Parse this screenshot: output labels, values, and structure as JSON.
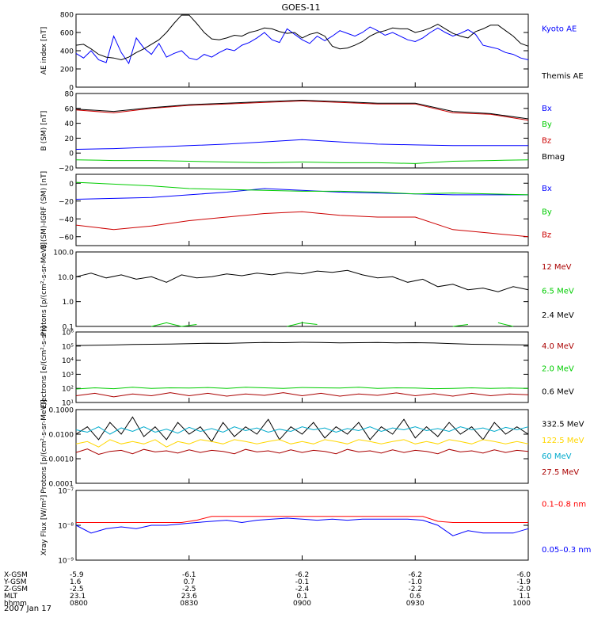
{
  "title": "GOES-11",
  "date_label": "2007 Jan 17",
  "x_ticks": [
    "0800",
    "0830",
    "0900",
    "0930",
    "1000"
  ],
  "ephemeris": {
    "labels": [
      "X-GSM",
      "Y-GSM",
      "Z-GSM",
      "MLT",
      "hhmm"
    ],
    "rows": [
      [
        "-5.9",
        "-6.1",
        "-6.2",
        "-6.2",
        "-6.0"
      ],
      [
        "1.6",
        "0.7",
        "-0.1",
        "-1.0",
        "-1.9"
      ],
      [
        "-2.5",
        "-2.5",
        "-2.4",
        "-2.2",
        "-2.0"
      ],
      [
        "23.1",
        "23.6",
        "0.1",
        "0.6",
        "1.1"
      ]
    ]
  },
  "colors": {
    "black": "#000000",
    "blue": "#0000ff",
    "green": "#00cc00",
    "red": "#cc0000",
    "darkred": "#aa0000",
    "yellow": "#ffd700",
    "cyan": "#00aacc",
    "orange_red": "#ff0000"
  },
  "chart_data": [
    {
      "type": "line",
      "ylabel": "AE index [nT]",
      "scale": "linear",
      "ylim": [
        0,
        800
      ],
      "yticks": [
        0,
        200,
        400,
        600,
        800
      ],
      "ytick_labels": [
        "0",
        "200",
        "400",
        "600",
        "800"
      ],
      "x": [
        0,
        2,
        4,
        6,
        8,
        10,
        12,
        14,
        16,
        18,
        20,
        22,
        24,
        26,
        28,
        30,
        32,
        34,
        36,
        38,
        40,
        42,
        44,
        46,
        48,
        50,
        52,
        54,
        56,
        58,
        60,
        62,
        64,
        66,
        68,
        70,
        72,
        74,
        76,
        78,
        80,
        82,
        84,
        86,
        88,
        90,
        92,
        94,
        96,
        98,
        100,
        102,
        104,
        106,
        108,
        110,
        112,
        114,
        116,
        118,
        120
      ],
      "series": [
        {
          "name": "Kyoto AE",
          "color": "#0000ff",
          "values": [
            370,
            320,
            400,
            300,
            270,
            560,
            380,
            260,
            540,
            430,
            360,
            480,
            330,
            370,
            400,
            320,
            300,
            360,
            330,
            380,
            420,
            400,
            460,
            490,
            540,
            600,
            520,
            490,
            640,
            580,
            520,
            480,
            560,
            510,
            560,
            620,
            590,
            560,
            600,
            660,
            620,
            570,
            600,
            560,
            520,
            500,
            540,
            600,
            650,
            600,
            560,
            590,
            630,
            580,
            460,
            440,
            420,
            380,
            360,
            320,
            300
          ]
        },
        {
          "name": "Themis AE",
          "color": "#000000",
          "values": [
            460,
            470,
            420,
            360,
            330,
            320,
            300,
            330,
            380,
            420,
            470,
            520,
            600,
            700,
            790,
            790,
            700,
            600,
            530,
            520,
            540,
            570,
            560,
            600,
            620,
            650,
            640,
            610,
            590,
            600,
            540,
            580,
            600,
            560,
            450,
            420,
            430,
            460,
            500,
            560,
            600,
            620,
            650,
            640,
            640,
            600,
            620,
            650,
            690,
            640,
            590,
            560,
            540,
            610,
            640,
            680,
            680,
            620,
            560,
            480,
            450
          ]
        }
      ],
      "legend": [
        "Kyoto AE",
        "Themis AE"
      ]
    },
    {
      "type": "line",
      "ylabel": "B (SM) [nT]",
      "scale": "linear",
      "ylim": [
        -20,
        80
      ],
      "yticks": [
        -20,
        0,
        20,
        40,
        60,
        80
      ],
      "ytick_labels": [
        "−20",
        "0",
        "20",
        "40",
        "60",
        "80"
      ],
      "x": [
        0,
        10,
        20,
        30,
        40,
        50,
        60,
        70,
        80,
        90,
        100,
        110,
        120
      ],
      "series": [
        {
          "name": "Bx",
          "color": "#0000ff",
          "values": [
            5,
            6,
            8,
            10,
            12,
            15,
            18,
            15,
            12,
            11,
            10,
            10,
            10
          ]
        },
        {
          "name": "By",
          "color": "#00cc00",
          "values": [
            -9,
            -10,
            -10,
            -11,
            -12,
            -13,
            -12,
            -13,
            -13,
            -14,
            -11,
            -10,
            -9
          ]
        },
        {
          "name": "Bz",
          "color": "#cc0000",
          "values": [
            58,
            54,
            60,
            64,
            66,
            68,
            70,
            68,
            66,
            66,
            54,
            52,
            44
          ]
        },
        {
          "name": "Bmag",
          "color": "#000000",
          "values": [
            59,
            56,
            61,
            65,
            67,
            69,
            71,
            69,
            67,
            67,
            56,
            53,
            46
          ]
        }
      ],
      "legend": [
        "Bx",
        "By",
        "Bz",
        "Bmag"
      ]
    },
    {
      "type": "line",
      "ylabel": "B (SM)-IGRF (SM) [nT]",
      "scale": "linear",
      "ylim": [
        -70,
        10
      ],
      "yticks": [
        -60,
        -40,
        -20,
        0
      ],
      "ytick_labels": [
        "−60",
        "−40",
        "−20",
        "0"
      ],
      "x": [
        0,
        10,
        20,
        30,
        40,
        50,
        60,
        70,
        80,
        90,
        100,
        110,
        120
      ],
      "series": [
        {
          "name": "Bx",
          "color": "#0000ff",
          "values": [
            -18,
            -17,
            -16,
            -13,
            -10,
            -6,
            -8,
            -10,
            -11,
            -12,
            -13,
            -13,
            -13
          ]
        },
        {
          "name": "By",
          "color": "#00cc00",
          "values": [
            1,
            -1,
            -3,
            -6,
            -7,
            -8,
            -9,
            -9,
            -10,
            -12,
            -11,
            -12,
            -13
          ]
        },
        {
          "name": "Bz",
          "color": "#cc0000",
          "values": [
            -47,
            -52,
            -48,
            -42,
            -38,
            -34,
            -32,
            -36,
            -38,
            -38,
            -52,
            -56,
            -60
          ]
        }
      ],
      "legend": [
        "Bx",
        "By",
        "Bz"
      ]
    },
    {
      "type": "line",
      "ylabel": "Protons [p/(cm²-s-sr-MeV)]",
      "scale": "log",
      "ylim": [
        0.1,
        100
      ],
      "yticks": [
        0.1,
        1,
        10,
        100
      ],
      "ytick_labels": [
        "0.1",
        "1.0",
        "10.0",
        "100.0"
      ],
      "x": [
        0,
        4,
        8,
        12,
        16,
        20,
        24,
        28,
        32,
        36,
        40,
        44,
        48,
        52,
        56,
        60,
        64,
        68,
        72,
        76,
        80,
        84,
        88,
        92,
        96,
        100,
        104,
        108,
        112,
        116,
        120
      ],
      "series": [
        {
          "name": "12 MeV",
          "color": "#aa0000",
          "values": [
            null,
            null,
            null,
            null,
            null,
            null,
            null,
            null,
            null,
            null,
            null,
            null,
            null,
            null,
            null,
            null,
            null,
            null,
            null,
            null,
            null,
            null,
            null,
            null,
            null,
            null,
            null,
            null,
            null,
            null,
            null
          ]
        },
        {
          "name": "6.5 MeV",
          "color": "#00cc00",
          "values": [
            0.1,
            null,
            null,
            null,
            null,
            0.1,
            0.14,
            0.1,
            0.12,
            null,
            null,
            null,
            null,
            null,
            0.1,
            0.14,
            0.12,
            null,
            null,
            null,
            null,
            0.1,
            null,
            0.14,
            null,
            0.1,
            0.12,
            null,
            0.14,
            0.1,
            null
          ]
        },
        {
          "name": "2.4 MeV",
          "color": "#000000",
          "values": [
            10,
            14,
            9,
            12,
            8,
            10,
            6,
            12,
            9,
            10,
            13,
            11,
            14,
            12,
            15,
            13,
            17,
            15,
            18,
            12,
            9,
            10,
            6,
            8,
            4,
            5,
            3,
            3.5,
            2.5,
            4,
            3
          ]
        }
      ],
      "legend": [
        "12 MeV",
        "6.5 MeV",
        "2.4 MeV"
      ]
    },
    {
      "type": "line",
      "ylabel": "Electrons [e/(cm²-s-sr)]",
      "scale": "log",
      "ylim": [
        10,
        1000000
      ],
      "yticks": [
        10,
        100,
        1000,
        10000,
        100000,
        1000000
      ],
      "ytick_labels": [
        "10¹",
        "10²",
        "10³",
        "10⁴",
        "10⁵",
        "10⁶"
      ],
      "x": [
        0,
        5,
        10,
        15,
        20,
        25,
        30,
        35,
        40,
        45,
        50,
        55,
        60,
        65,
        70,
        75,
        80,
        85,
        90,
        95,
        100,
        105,
        110,
        115,
        120
      ],
      "series": [
        {
          "name": "4.0 MeV",
          "color": "#aa0000",
          "values": [
            30,
            45,
            25,
            40,
            30,
            50,
            30,
            45,
            28,
            40,
            32,
            50,
            30,
            45,
            28,
            40,
            32,
            48,
            30,
            42,
            28,
            45,
            30,
            40,
            35
          ]
        },
        {
          "name": "2.0 MeV",
          "color": "#00cc00",
          "values": [
            90,
            110,
            95,
            120,
            100,
            110,
            105,
            115,
            100,
            120,
            110,
            100,
            115,
            110,
            105,
            120,
            100,
            110,
            105,
            95,
            100,
            110,
            100,
            105,
            100
          ]
        },
        {
          "name": "0.6 MeV",
          "color": "#000000",
          "values": [
            110000,
            115000,
            120000,
            130000,
            135000,
            140000,
            150000,
            160000,
            155000,
            170000,
            180000,
            175000,
            185000,
            180000,
            170000,
            175000,
            180000,
            170000,
            175000,
            165000,
            150000,
            135000,
            130000,
            125000,
            120000
          ]
        }
      ],
      "legend": [
        "4.0 MeV",
        "2.0 MeV",
        "0.6 MeV"
      ]
    },
    {
      "type": "line",
      "ylabel": "Protons [p/(cm²-s-sr-MeV)]",
      "scale": "log",
      "ylim": [
        0.0001,
        0.1
      ],
      "yticks": [
        0.0001,
        0.001,
        0.01,
        0.1
      ],
      "ytick_labels": [
        "0.0001",
        "0.0010",
        "0.0100",
        "0.1000"
      ],
      "x": [
        0,
        3,
        6,
        9,
        12,
        15,
        18,
        21,
        24,
        27,
        30,
        33,
        36,
        39,
        42,
        45,
        48,
        51,
        54,
        57,
        60,
        63,
        66,
        69,
        72,
        75,
        78,
        81,
        84,
        87,
        90,
        93,
        96,
        99,
        102,
        105,
        108,
        111,
        114,
        117,
        120
      ],
      "series": [
        {
          "name": "332.5 MeV",
          "color": "#000000",
          "values": [
            0.01,
            0.02,
            0.006,
            0.03,
            0.01,
            0.05,
            0.008,
            0.02,
            0.006,
            0.03,
            0.01,
            0.02,
            0.005,
            0.03,
            0.008,
            0.02,
            0.01,
            0.04,
            0.006,
            0.02,
            0.01,
            0.03,
            0.007,
            0.02,
            0.01,
            0.03,
            0.006,
            0.02,
            0.01,
            0.04,
            0.007,
            0.02,
            0.008,
            0.03,
            0.01,
            0.02,
            0.006,
            0.03,
            0.01,
            0.02,
            0.01
          ]
        },
        {
          "name": "122.5 MeV",
          "color": "#ffd700",
          "values": [
            0.004,
            0.005,
            0.003,
            0.006,
            0.004,
            0.005,
            0.004,
            0.006,
            0.003,
            0.005,
            0.004,
            0.006,
            0.005,
            0.004,
            0.006,
            0.005,
            0.004,
            0.005,
            0.006,
            0.004,
            0.005,
            0.004,
            0.006,
            0.005,
            0.004,
            0.006,
            0.005,
            0.004,
            0.005,
            0.006,
            0.004,
            0.005,
            0.004,
            0.006,
            0.005,
            0.004,
            0.006,
            0.005,
            0.004,
            0.005,
            0.004
          ]
        },
        {
          "name": "60 MeV",
          "color": "#00aacc",
          "values": [
            0.015,
            0.012,
            0.02,
            0.01,
            0.018,
            0.013,
            0.02,
            0.012,
            0.016,
            0.011,
            0.019,
            0.013,
            0.017,
            0.012,
            0.02,
            0.014,
            0.018,
            0.012,
            0.016,
            0.013,
            0.02,
            0.015,
            0.018,
            0.012,
            0.017,
            0.014,
            0.02,
            0.013,
            0.018,
            0.015,
            0.02,
            0.014,
            0.017,
            0.013,
            0.02,
            0.015,
            0.018,
            0.013,
            0.019,
            0.015,
            0.02
          ]
        },
        {
          "name": "27.5 MeV",
          "color": "#aa0000",
          "values": [
            0.0018,
            0.0025,
            0.0015,
            0.002,
            0.0022,
            0.0016,
            0.0024,
            0.0019,
            0.0021,
            0.0017,
            0.0023,
            0.0018,
            0.0022,
            0.002,
            0.0016,
            0.0024,
            0.0019,
            0.0021,
            0.0017,
            0.0023,
            0.0018,
            0.0022,
            0.002,
            0.0016,
            0.0024,
            0.0019,
            0.0021,
            0.0017,
            0.0023,
            0.0018,
            0.0022,
            0.002,
            0.0016,
            0.0024,
            0.0019,
            0.0021,
            0.0017,
            0.0023,
            0.0018,
            0.0022,
            0.002
          ]
        }
      ],
      "legend": [
        "332.5 MeV",
        "122.5 MeV",
        "60 MeV",
        "27.5 MeV"
      ]
    },
    {
      "type": "line",
      "ylabel": "Xray Flux [W/m²]",
      "scale": "log",
      "ylim": [
        1e-09,
        1e-07
      ],
      "yticks": [
        1e-09,
        1e-08,
        1e-07
      ],
      "ytick_labels": [
        "10⁻⁹",
        "10⁻⁸",
        "10⁻⁷"
      ],
      "x": [
        0,
        4,
        8,
        12,
        16,
        20,
        24,
        28,
        32,
        36,
        40,
        44,
        48,
        52,
        56,
        60,
        64,
        68,
        72,
        76,
        80,
        84,
        88,
        92,
        96,
        100,
        104,
        108,
        112,
        116,
        120
      ],
      "series": [
        {
          "name": "0.1–0.8 nm",
          "color": "#ff0000",
          "values": [
            1.2e-08,
            1.2e-08,
            1.2e-08,
            1.2e-08,
            1.2e-08,
            1.2e-08,
            1.2e-08,
            1.2e-08,
            1.4e-08,
            1.8e-08,
            1.8e-08,
            1.8e-08,
            1.8e-08,
            1.8e-08,
            1.8e-08,
            1.8e-08,
            1.8e-08,
            1.8e-08,
            1.8e-08,
            1.8e-08,
            1.8e-08,
            1.8e-08,
            1.8e-08,
            1.8e-08,
            1.3e-08,
            1.2e-08,
            1.2e-08,
            1.2e-08,
            1.2e-08,
            1.2e-08,
            1.2e-08
          ]
        },
        {
          "name": "0.05–0.3 nm",
          "color": "#0000ff",
          "values": [
            1e-08,
            6e-09,
            8e-09,
            9e-09,
            8e-09,
            1e-08,
            1e-08,
            1.1e-08,
            1.2e-08,
            1.3e-08,
            1.4e-08,
            1.2e-08,
            1.4e-08,
            1.5e-08,
            1.6e-08,
            1.5e-08,
            1.4e-08,
            1.5e-08,
            1.4e-08,
            1.5e-08,
            1.5e-08,
            1.5e-08,
            1.5e-08,
            1.4e-08,
            1e-08,
            5e-09,
            7e-09,
            6e-09,
            6e-09,
            6e-09,
            8e-09
          ]
        }
      ],
      "legend": [
        "0.1–0.8 nm",
        "0.05–0.3 nm"
      ]
    }
  ]
}
